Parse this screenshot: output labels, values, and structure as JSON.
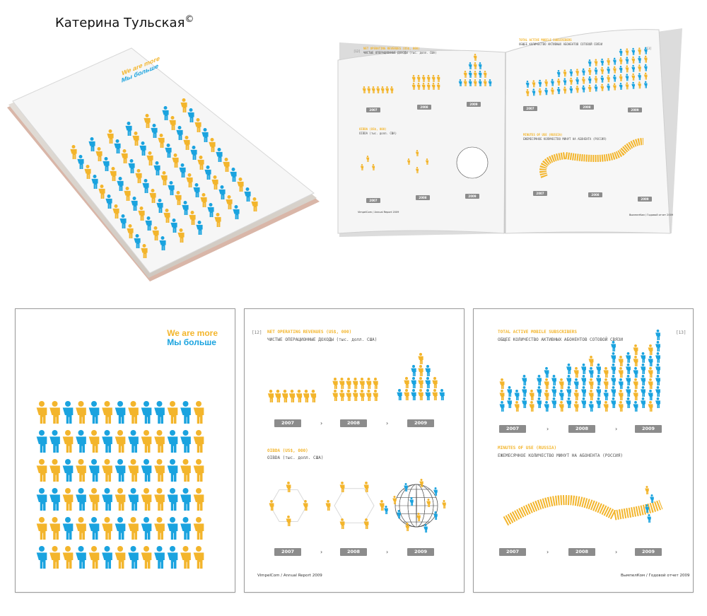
{
  "author": {
    "name": "Катерина Тульская",
    "copyright": "©"
  },
  "cover": {
    "title_en": "We are more",
    "title_ru": "Мы больше"
  },
  "colors": {
    "yellow": "#f3b52c",
    "blue": "#1aa3df",
    "label_gray": "#8c8c8c",
    "panel_border": "#9a9a9a"
  },
  "spread_left": {
    "page_number": "[12]",
    "section1_en": "NET OPERATING REVENUES (US$, 000)",
    "section1_ru": "ЧИСТЫЕ ОПЕРАЦИОННЫЕ ДОХОДЫ (тыс. долл. США)",
    "section2_en": "OIBDA (US$, 000)",
    "section2_ru": "OIBDA (тыс. долл. США)",
    "years": [
      "2007",
      "2008",
      "2009"
    ],
    "footer": "VimpelCom / Annual Report 2009"
  },
  "spread_right": {
    "page_number": "[13]",
    "section1_en": "TOTAL ACTIVE MOBILE SUBSCRIBERS",
    "section1_ru": "ОБЩЕЕ КОЛИЧЕСТВО АКТИВНЫХ АБОНЕНТОВ СОТОВОЙ СВЯЗИ",
    "section2_en": "MINUTES OF USE (RUSSIA)",
    "section2_ru": "ЕЖЕМЕСЯЧНОЕ КОЛИЧЕСТВО МИНУТ НА АБОНЕНТА (РОССИЯ)",
    "years": [
      "2007",
      "2008",
      "2009"
    ],
    "footer": "ВымпелКом / Годовой отчет 2009"
  },
  "arrow_glyph": "›"
}
